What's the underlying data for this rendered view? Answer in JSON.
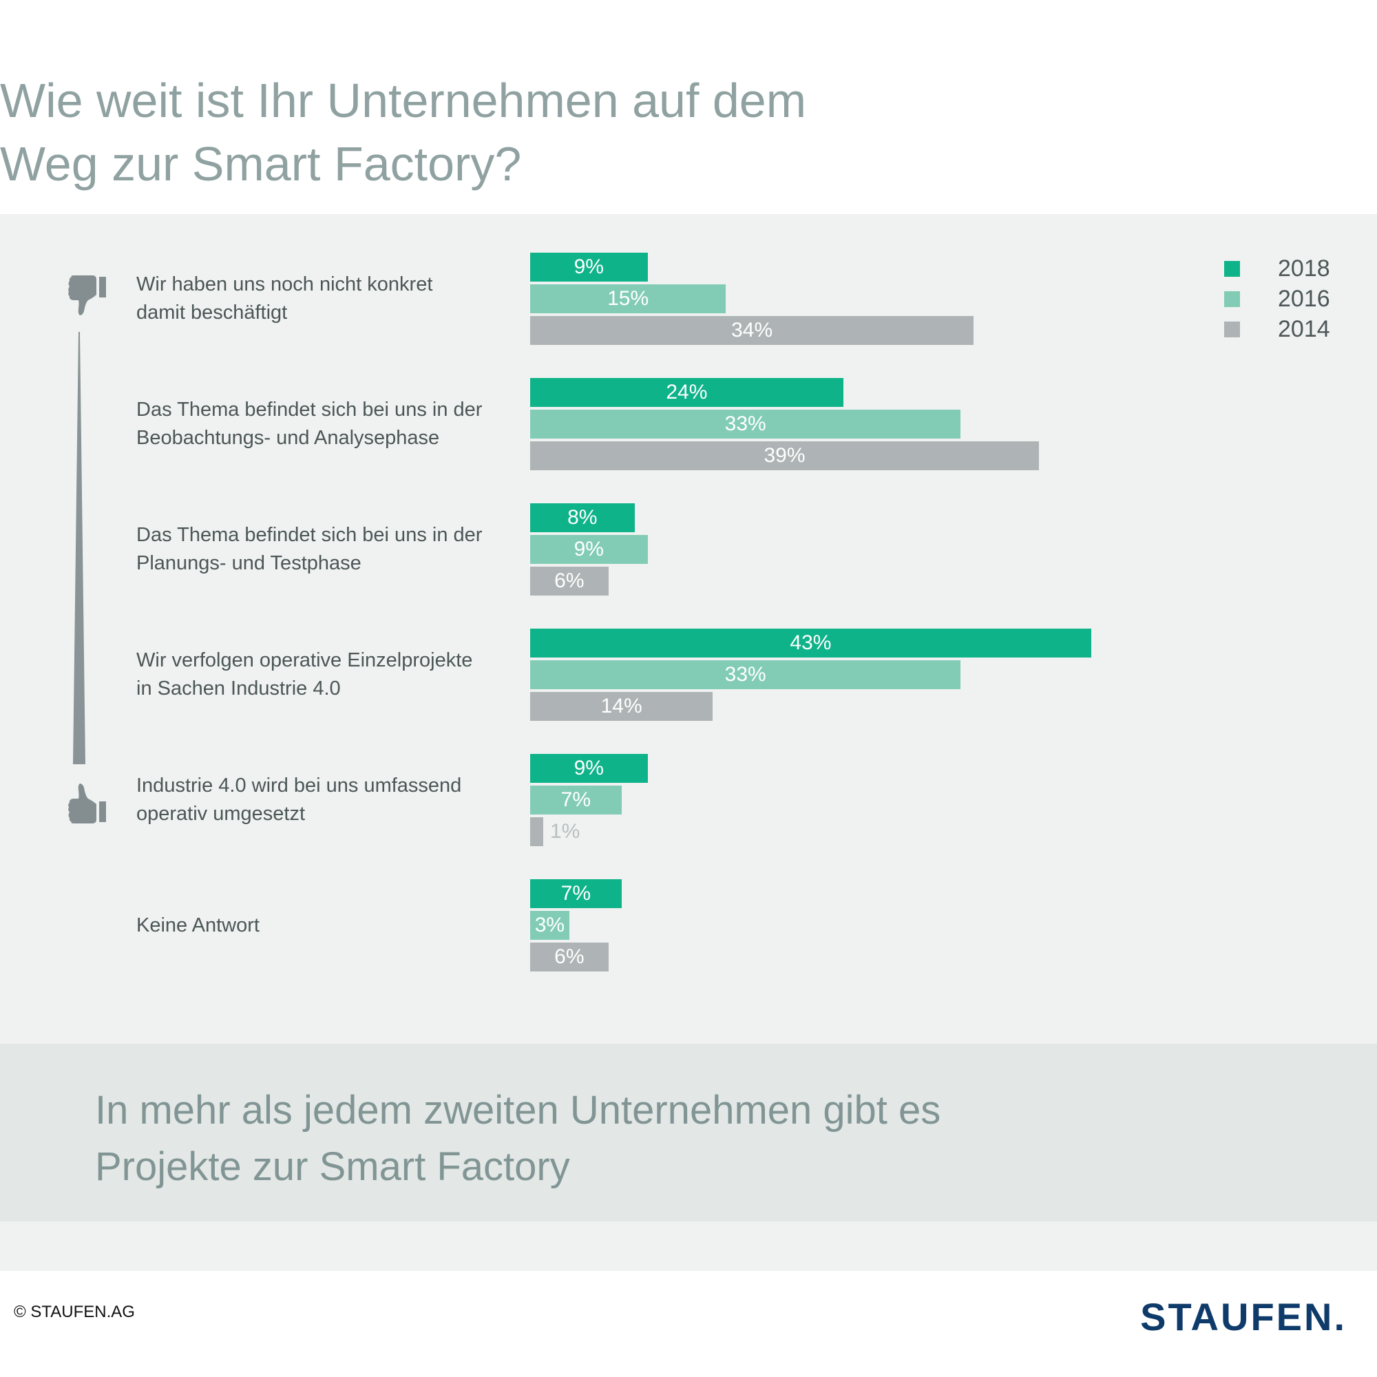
{
  "title": {
    "line1": "Wie weit ist Ihr Unternehmen auf dem",
    "line2": "Weg zur Smart Factory?"
  },
  "icons": {
    "top": "thumbs-down-icon",
    "bottom": "thumbs-up-icon",
    "scale": "tapered-scale-line"
  },
  "colors": {
    "2018": "#0fb38a",
    "2016": "#82ccb5",
    "2014": "#aeb4b5",
    "title": "#8fa1a0",
    "logo": "#0f3b6a"
  },
  "conclusion": {
    "line1": "In mehr als jedem zweiten Unternehmen gibt es",
    "line2": "Projekte zur Smart Factory"
  },
  "footer": {
    "copyright": "© STAUFEN.AG",
    "logo": "STAUFEN."
  },
  "chart_data": {
    "type": "bar",
    "orientation": "horizontal",
    "title": "Wie weit ist Ihr Unternehmen auf dem Weg zur Smart Factory?",
    "xlabel": "",
    "ylabel": "",
    "unit": "%",
    "xlim": [
      0,
      45
    ],
    "grid": false,
    "legend_position": "top-right",
    "categories": [
      {
        "line1": "Wir haben uns noch nicht konkret",
        "line2": "damit beschäftigt"
      },
      {
        "line1": "Das Thema befindet sich bei uns in der",
        "line2": "Beobachtungs- und Analysephase"
      },
      {
        "line1": "Das Thema befindet sich bei uns in der",
        "line2": "Planungs- und Testphase"
      },
      {
        "line1": "Wir verfolgen operative Einzelprojekte",
        "line2": "in Sachen Industrie 4.0"
      },
      {
        "line1": "Industrie 4.0 wird bei uns umfassend",
        "line2": "operativ umgesetzt"
      },
      {
        "line1": "Keine Antwort",
        "line2": ""
      }
    ],
    "series": [
      {
        "name": "2018",
        "color": "#0fb38a",
        "values": [
          9,
          24,
          8,
          43,
          9,
          7
        ],
        "labels": [
          "9%",
          "24%",
          "8%",
          "43%",
          "9%",
          "7%"
        ]
      },
      {
        "name": "2016",
        "color": "#82ccb5",
        "values": [
          15,
          33,
          9,
          33,
          7,
          3
        ],
        "labels": [
          "15%",
          "33%",
          "9%",
          "33%",
          "7%",
          "3%"
        ]
      },
      {
        "name": "2014",
        "color": "#aeb4b5",
        "values": [
          34,
          39,
          6,
          14,
          1,
          6
        ],
        "labels": [
          "34%",
          "39%",
          "6%",
          "14%",
          "1%",
          "6%"
        ]
      }
    ]
  }
}
